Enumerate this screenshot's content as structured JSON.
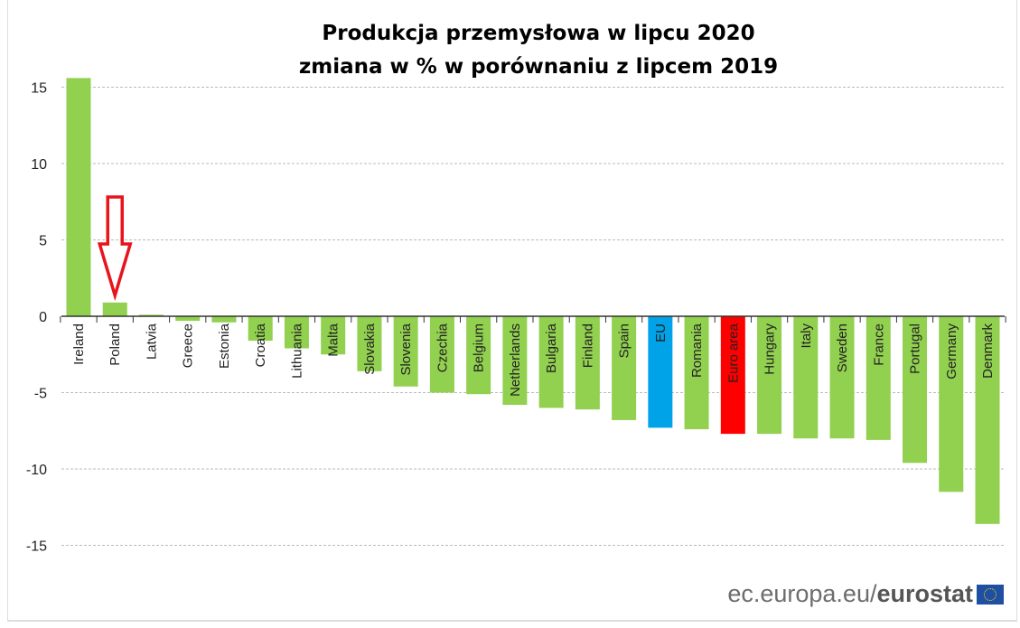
{
  "chart_data": {
    "type": "bar",
    "title": "Produkcja przemysłowa w lipcu 2020",
    "subtitle": "zmiana w % w porównaniu z lipcem 2019",
    "xlabel": "",
    "ylabel": "",
    "ylim": [
      -18,
      16
    ],
    "yticks": [
      15,
      10,
      5,
      0,
      -5,
      -10,
      -15
    ],
    "grid": true,
    "categories": [
      "Ireland",
      "Poland",
      "Latvia",
      "Greece",
      "Estonia",
      "Croatia",
      "Lithuania",
      "Malta",
      "Slovakia",
      "Slovenia",
      "Czechia",
      "Belgium",
      "Netherlands",
      "Bulgaria",
      "Finland",
      "Spain",
      "EU",
      "Romania",
      "Euro area",
      "Hungary",
      "Italy",
      "Sweden",
      "France",
      "Portugal",
      "Germany",
      "Denmark"
    ],
    "values": [
      15.6,
      0.9,
      0.1,
      -0.3,
      -0.4,
      -1.6,
      -2.1,
      -2.5,
      -3.6,
      -4.6,
      -5.0,
      -5.1,
      -5.8,
      -6.0,
      -6.1,
      -6.8,
      -7.3,
      -7.4,
      -7.7,
      -7.7,
      -8.0,
      -8.0,
      -8.1,
      -9.6,
      -11.5,
      -13.6
    ],
    "colors": {
      "default": "#92d050",
      "EU": "#00a2e8",
      "Euro area": "#ff0000"
    },
    "annotation": {
      "type": "arrow",
      "target": "Poland",
      "color": "#e8141c"
    }
  },
  "footer": {
    "source_plain": "ec.europa.eu/",
    "source_bold": "eurostat",
    "logo": "eu-flag-icon"
  }
}
